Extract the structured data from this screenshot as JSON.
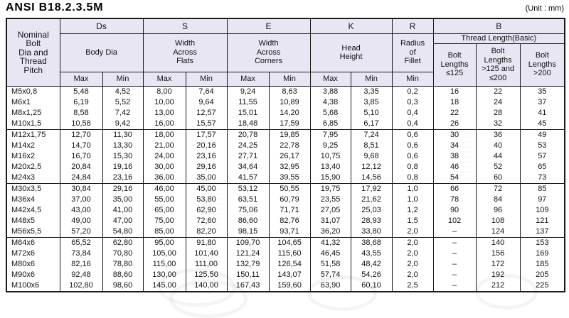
{
  "title": "ANSI B18.2.3.5M",
  "unit_label": "(Unit : mm)",
  "table": {
    "headers": {
      "nominal": "Nominal\nBolt\nDia and\nThread\nPitch",
      "ds_letter": "Ds",
      "ds_desc": "Body Dia",
      "s_letter": "S",
      "s_desc": "Width\nAcross\nFlats",
      "e_letter": "E",
      "e_desc": "Width\nAcross\nCorners",
      "k_letter": "K",
      "k_desc": "Head\nHeight",
      "r_letter": "R",
      "r_desc": "Radius\nof\nFillet",
      "b_letter": "B",
      "b_desc": "Thread Length(Basic)",
      "b_col_1": "Bolt\nLengths\n≤125",
      "b_col_2": "Bolt\nLengths\n>125 and\n≤200",
      "b_col_3": "Bolt\nLengths\n>200",
      "max": "Max",
      "min": "Min"
    },
    "row_groups": [
      [
        [
          "M5x0,8",
          "5,48",
          "4,52",
          "8,00",
          "7,64",
          "9,24",
          "8,63",
          "3,88",
          "3,35",
          "0,2",
          "16",
          "22",
          "35"
        ],
        [
          "M6x1",
          "6,19",
          "5,52",
          "10,00",
          "9,64",
          "11,55",
          "10,89",
          "4,38",
          "3,85",
          "0,3",
          "18",
          "24",
          "37"
        ],
        [
          "M8x1,25",
          "8,58",
          "7,42",
          "13,00",
          "12,57",
          "15,01",
          "14,20",
          "5,68",
          "5,10",
          "0,4",
          "22",
          "28",
          "41"
        ],
        [
          "M10x1,5",
          "10,58",
          "9,42",
          "16,00",
          "15,57",
          "18,48",
          "17,59",
          "6,85",
          "6,17",
          "0,4",
          "26",
          "32",
          "45"
        ]
      ],
      [
        [
          "M12x1,75",
          "12,70",
          "11,30",
          "18,00",
          "17,57",
          "20,78",
          "19,85",
          "7,95",
          "7,24",
          "0,6",
          "30",
          "36",
          "49"
        ],
        [
          "M14x2",
          "14,70",
          "13,30",
          "21,00",
          "20,16",
          "24,25",
          "22,78",
          "9,25",
          "8,51",
          "0,6",
          "34",
          "40",
          "53"
        ],
        [
          "M16x2",
          "16,70",
          "15,30",
          "24,00",
          "23,16",
          "27,71",
          "26,17",
          "10,75",
          "9,68",
          "0,6",
          "38",
          "44",
          "57"
        ],
        [
          "M20x2,5",
          "20,84",
          "19,16",
          "30,00",
          "29,16",
          "34,64",
          "32,95",
          "13,40",
          "12,12",
          "0,8",
          "46",
          "52",
          "65"
        ],
        [
          "M24x3",
          "24,84",
          "23,16",
          "36,00",
          "35,00",
          "41,57",
          "39,55",
          "15,90",
          "14,56",
          "0,8",
          "54",
          "60",
          "73"
        ]
      ],
      [
        [
          "M30x3,5",
          "30,84",
          "29,16",
          "46,00",
          "45,00",
          "53,12",
          "50,55",
          "19,75",
          "17,92",
          "1,0",
          "66",
          "72",
          "85"
        ],
        [
          "M36x4",
          "37,00",
          "35,00",
          "55,00",
          "53,80",
          "63,51",
          "60,79",
          "23,55",
          "21,62",
          "1,0",
          "78",
          "84",
          "97"
        ],
        [
          "M42x4,5",
          "43,00",
          "41,00",
          "65,00",
          "62,90",
          "75,06",
          "71,71",
          "27,05",
          "25,03",
          "1,2",
          "90",
          "96",
          "109"
        ],
        [
          "M48x5",
          "49,00",
          "47,00",
          "75,00",
          "72,60",
          "86,60",
          "82,76",
          "31,07",
          "28,93",
          "1,5",
          "102",
          "108",
          "121"
        ],
        [
          "M56x5,5",
          "57,20",
          "54,80",
          "85,00",
          "82,20",
          "98,15",
          "93,71",
          "36,20",
          "33,80",
          "2,0",
          "–",
          "124",
          "137"
        ]
      ],
      [
        [
          "M64x6",
          "65,52",
          "62,80",
          "95,00",
          "91,80",
          "109,70",
          "104,65",
          "41,32",
          "38,68",
          "2,0",
          "–",
          "140",
          "153"
        ],
        [
          "M72x6",
          "73,84",
          "70,80",
          "105,00",
          "101,40",
          "121,24",
          "115,60",
          "46,45",
          "43,55",
          "2,0",
          "–",
          "156",
          "169"
        ],
        [
          "M80x6",
          "82,16",
          "78,80",
          "115,00",
          "111,00",
          "132,79",
          "126,54",
          "51,58",
          "48,42",
          "2,0",
          "–",
          "172",
          "185"
        ],
        [
          "M90x6",
          "92,48",
          "88,60",
          "130,00",
          "125,50",
          "150,11",
          "143,07",
          "57,74",
          "54,26",
          "2,0",
          "–",
          "192",
          "205"
        ],
        [
          "M100x6",
          "102,80",
          "98,60",
          "145,00",
          "140,00",
          "167,43",
          "159,60",
          "63,90",
          "60,10",
          "2,5",
          "–",
          "212",
          "225"
        ]
      ]
    ]
  }
}
